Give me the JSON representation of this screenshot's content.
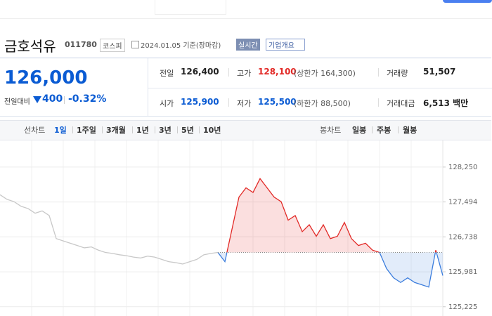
{
  "header": {
    "title": "금호석유",
    "code": "011780",
    "market": "코스피",
    "date": "2024.01.05 기준(장마감)",
    "realtime": "실시간",
    "company_info": "기업개요"
  },
  "price": {
    "current": "126,000",
    "change_label": "전일대비",
    "change": "400",
    "change_rate": "-0.32%"
  },
  "quote_table": {
    "rows": [
      [
        {
          "label": "전일",
          "value": "126,400",
          "color": "#222"
        },
        {
          "label": "고가",
          "value": "128,100",
          "note": "(상한가 164,300)",
          "color": "#e22926"
        },
        {
          "label": "거래량",
          "value": "51,507",
          "color": "#222"
        }
      ],
      [
        {
          "label": "시가",
          "value": "125,900",
          "color": "#0a5bd3"
        },
        {
          "label": "저가",
          "value": "125,500",
          "note": "(하한가 88,500)",
          "color": "#0a5bd3"
        },
        {
          "label": "거래대금",
          "value": "6,513 백만",
          "color": "#222"
        }
      ]
    ]
  },
  "tabs": {
    "line_label": "선차트",
    "line": [
      "1일",
      "1주일",
      "3개월",
      "1년",
      "3년",
      "5년",
      "10년"
    ],
    "candle_label": "봉차트",
    "candle": [
      "일봉",
      "주봉",
      "월봉"
    ]
  },
  "chart_data": {
    "type": "line",
    "ylim": [
      125100,
      128750
    ],
    "yticks": [
      {
        "value": 125225,
        "label": "125,225"
      },
      {
        "value": 125981,
        "label": "125,981"
      },
      {
        "value": 126738,
        "label": "126,738"
      },
      {
        "value": 127494,
        "label": "127,494"
      },
      {
        "value": 128250,
        "label": "128,250"
      }
    ],
    "reference_line": 126400,
    "up_color": "#e22926",
    "down_color": "#3b7ddd",
    "series": [
      {
        "color": "#c8c8c8",
        "values": [
          127650,
          127550,
          127500,
          127400,
          127350,
          127250,
          127300,
          127200,
          126700,
          126650,
          126600,
          126550,
          126500,
          126520,
          126450,
          126400,
          126380,
          126350,
          126330,
          126300,
          126280,
          126320,
          126300,
          126250,
          126200,
          126180,
          126150,
          126200,
          126250,
          126350,
          126380,
          126400,
          null,
          null,
          null,
          null,
          null,
          null,
          null,
          null,
          null,
          null,
          null,
          null,
          null,
          null,
          null,
          null,
          null,
          null,
          null,
          null,
          null,
          null,
          null,
          null,
          null,
          null,
          null,
          null,
          null,
          null,
          null,
          null
        ]
      },
      {
        "color": "split",
        "values": [
          null,
          null,
          null,
          null,
          null,
          null,
          null,
          null,
          null,
          null,
          null,
          null,
          null,
          null,
          null,
          null,
          null,
          null,
          null,
          null,
          null,
          null,
          null,
          null,
          null,
          null,
          null,
          null,
          null,
          null,
          null,
          126400,
          126200,
          126900,
          127600,
          127800,
          127700,
          128000,
          127800,
          127600,
          127500,
          127100,
          127200,
          126850,
          127000,
          126750,
          127000,
          126700,
          126750,
          127050,
          126700,
          126550,
          126600,
          126450,
          126400,
          126050,
          125850,
          125750,
          125850,
          125750,
          125700,
          125650,
          126450,
          125900
        ]
      }
    ]
  }
}
